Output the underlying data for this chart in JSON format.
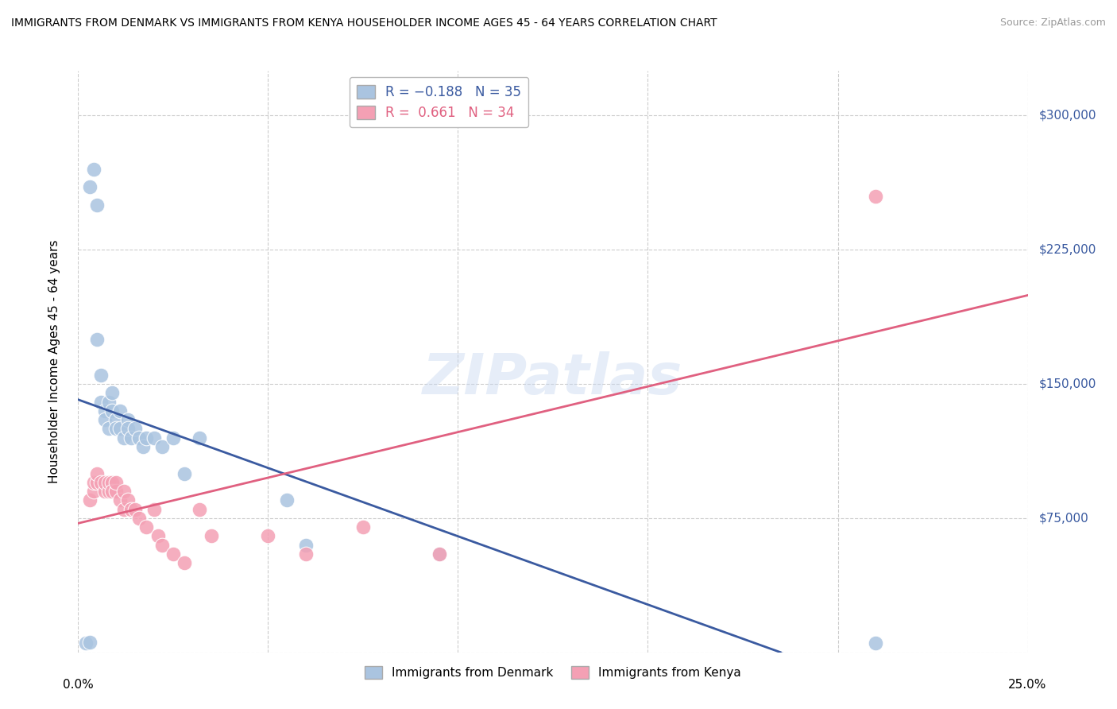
{
  "title": "IMMIGRANTS FROM DENMARK VS IMMIGRANTS FROM KENYA HOUSEHOLDER INCOME AGES 45 - 64 YEARS CORRELATION CHART",
  "source": "Source: ZipAtlas.com",
  "ylabel": "Householder Income Ages 45 - 64 years",
  "y_ticks": [
    0,
    75000,
    150000,
    225000,
    300000
  ],
  "x_ticks": [
    0.0,
    0.05,
    0.1,
    0.15,
    0.2,
    0.25
  ],
  "xlim": [
    0.0,
    0.25
  ],
  "ylim": [
    0,
    325000
  ],
  "denmark_R": -0.188,
  "denmark_N": 35,
  "kenya_R": 0.661,
  "kenya_N": 34,
  "denmark_color": "#aac4e0",
  "kenya_color": "#f4a0b4",
  "denmark_line_color": "#3a5aa0",
  "kenya_line_color": "#e06080",
  "denmark_scatter_x": [
    0.002,
    0.003,
    0.003,
    0.004,
    0.005,
    0.005,
    0.006,
    0.006,
    0.007,
    0.007,
    0.008,
    0.008,
    0.009,
    0.009,
    0.01,
    0.01,
    0.011,
    0.011,
    0.012,
    0.013,
    0.013,
    0.014,
    0.015,
    0.016,
    0.017,
    0.018,
    0.02,
    0.022,
    0.025,
    0.028,
    0.032,
    0.055,
    0.06,
    0.095,
    0.21
  ],
  "denmark_scatter_y": [
    5000,
    5500,
    260000,
    270000,
    250000,
    175000,
    140000,
    155000,
    135000,
    130000,
    125000,
    140000,
    135000,
    145000,
    130000,
    125000,
    135000,
    125000,
    120000,
    130000,
    125000,
    120000,
    125000,
    120000,
    115000,
    120000,
    120000,
    115000,
    120000,
    100000,
    120000,
    85000,
    60000,
    55000,
    5000
  ],
  "kenya_scatter_x": [
    0.003,
    0.004,
    0.004,
    0.005,
    0.005,
    0.006,
    0.007,
    0.007,
    0.008,
    0.008,
    0.009,
    0.009,
    0.01,
    0.01,
    0.011,
    0.012,
    0.012,
    0.013,
    0.014,
    0.015,
    0.016,
    0.018,
    0.02,
    0.021,
    0.022,
    0.025,
    0.028,
    0.032,
    0.035,
    0.05,
    0.06,
    0.075,
    0.095,
    0.21
  ],
  "kenya_scatter_y": [
    85000,
    90000,
    95000,
    95000,
    100000,
    95000,
    90000,
    95000,
    90000,
    95000,
    95000,
    90000,
    90000,
    95000,
    85000,
    90000,
    80000,
    85000,
    80000,
    80000,
    75000,
    70000,
    80000,
    65000,
    60000,
    55000,
    50000,
    80000,
    65000,
    65000,
    55000,
    70000,
    55000,
    255000
  ],
  "watermark": "ZIPatlas",
  "background_color": "#ffffff",
  "grid_color": "#cccccc"
}
